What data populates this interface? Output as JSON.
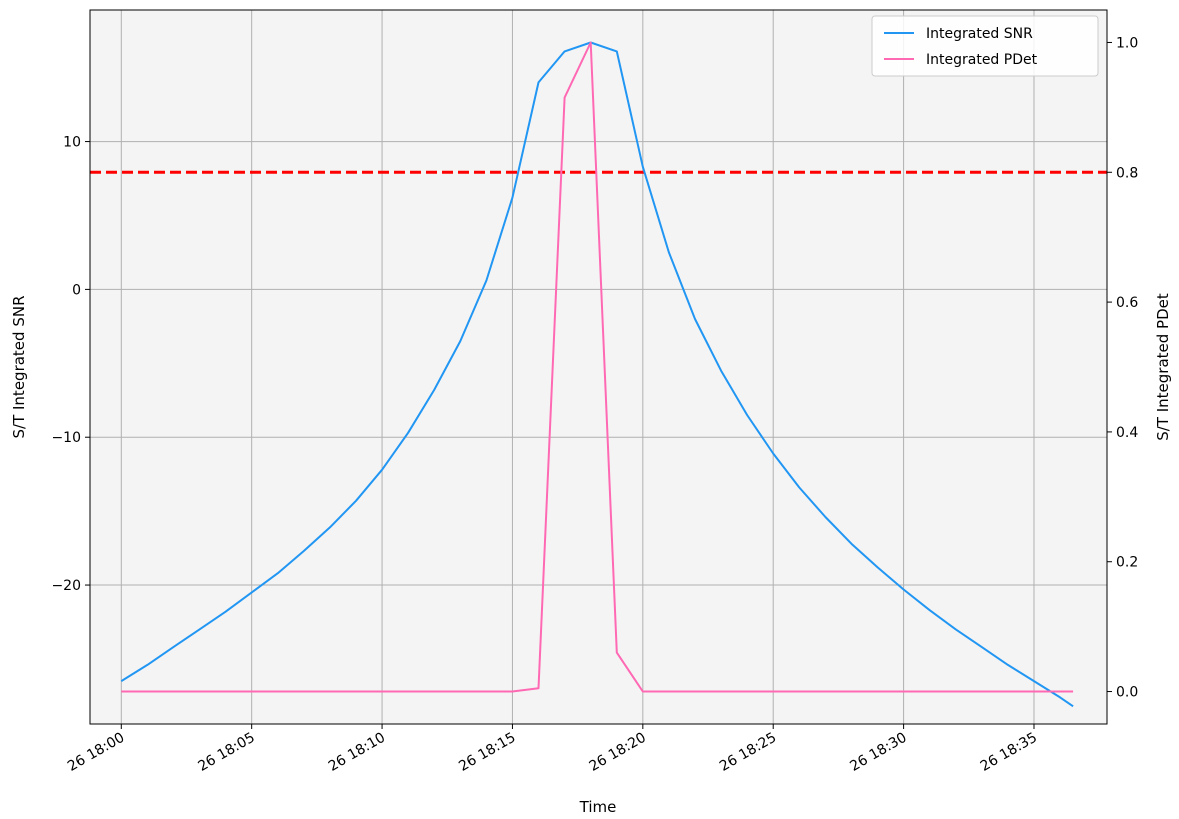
{
  "chart_data": {
    "type": "line",
    "xlabel": "Time",
    "ylabel_left": "S/T Integrated SNR",
    "ylabel_right": "S/T Integrated PDet",
    "x_tick_labels": [
      "26 18:00",
      "26 18:05",
      "26 18:10",
      "26 18:15",
      "26 18:20",
      "26 18:25",
      "26 18:30",
      "26 18:35"
    ],
    "x_tick_minutes": [
      0,
      5,
      10,
      15,
      20,
      25,
      30,
      35
    ],
    "xlim_minutes": [
      -1.2,
      37.8
    ],
    "y_left_ticks": [
      -20,
      -10,
      0,
      10
    ],
    "y_left_tick_labels": [
      "−20",
      "−10",
      "0",
      "10"
    ],
    "ylim_left": [
      -29.4,
      18.9
    ],
    "y_right_ticks": [
      0.0,
      0.2,
      0.4,
      0.6,
      0.8,
      1.0
    ],
    "y_right_tick_labels": [
      "0.0",
      "0.2",
      "0.4",
      "0.6",
      "0.8",
      "1.0"
    ],
    "ylim_right": [
      -0.05,
      1.05
    ],
    "grid": true,
    "background_color": "#f4f4f4",
    "legend_position": "top-right",
    "series": [
      {
        "name": "Integrated SNR",
        "axis": "left",
        "color": "#2196f3",
        "x": [
          0,
          1,
          2,
          3,
          4,
          5,
          6,
          7,
          8,
          9,
          10,
          11,
          12,
          13,
          14,
          15,
          16,
          17,
          18,
          19,
          20,
          21,
          22,
          23,
          24,
          25,
          26,
          27,
          28,
          29,
          30,
          31,
          32,
          33,
          34,
          35,
          36,
          36.5
        ],
        "values": [
          -26.5,
          -25.4,
          -24.2,
          -23.0,
          -21.8,
          -20.5,
          -19.2,
          -17.7,
          -16.1,
          -14.3,
          -12.2,
          -9.7,
          -6.8,
          -3.5,
          0.6,
          6.2,
          14.0,
          16.1,
          16.7,
          16.1,
          8.3,
          2.5,
          -2.0,
          -5.5,
          -8.5,
          -11.1,
          -13.4,
          -15.4,
          -17.2,
          -18.8,
          -20.3,
          -21.7,
          -23.0,
          -24.2,
          -25.4,
          -26.5,
          -27.6,
          -28.2
        ]
      },
      {
        "name": "Integrated PDet",
        "axis": "right",
        "color": "#ff69b4",
        "x": [
          0,
          15,
          16,
          17,
          18,
          19,
          20,
          36.5
        ],
        "values": [
          0.0,
          0.0,
          0.005,
          0.915,
          1.0,
          0.06,
          0.0,
          0.0
        ]
      }
    ],
    "threshold_line": {
      "axis": "right",
      "value": 0.8,
      "color": "#ff0000",
      "style": "dashed"
    }
  }
}
